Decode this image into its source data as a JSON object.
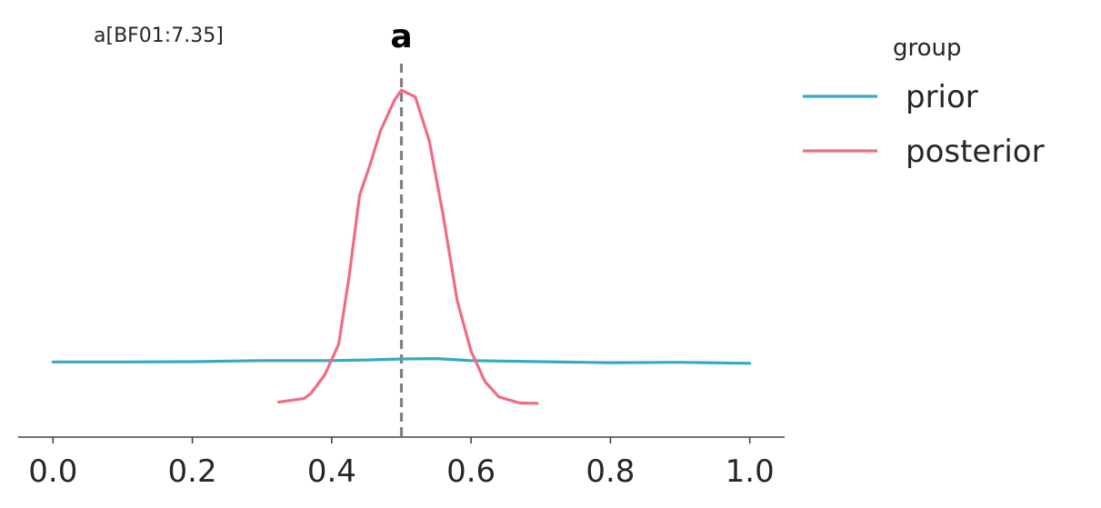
{
  "chart_data": {
    "type": "line",
    "title": "a",
    "annotation": "a[BF01:7.35]",
    "xlabel": "",
    "ylabel": "",
    "xlim": [
      -0.05,
      1.05
    ],
    "ylim": [
      0,
      1
    ],
    "x_ticks": [
      0.0,
      0.2,
      0.4,
      0.6,
      0.8,
      1.0
    ],
    "x_tick_labels": [
      "0.0",
      "0.2",
      "0.4",
      "0.6",
      "0.8",
      "1.0"
    ],
    "reference_line": {
      "x": 0.5,
      "style": "dashed",
      "color": "#808080"
    },
    "grid": false,
    "legend": {
      "title": "group",
      "placement": "right"
    },
    "series": [
      {
        "name": "prior",
        "color": "#36a9c5",
        "x": [
          0.0,
          0.1,
          0.2,
          0.3,
          0.4,
          0.45,
          0.5,
          0.55,
          0.6,
          0.7,
          0.8,
          0.9,
          1.0
        ],
        "y": [
          0.168,
          0.168,
          0.169,
          0.172,
          0.172,
          0.174,
          0.177,
          0.178,
          0.172,
          0.169,
          0.166,
          0.167,
          0.164
        ]
      },
      {
        "name": "posterior",
        "color": "#f06c82",
        "x": [
          0.324,
          0.36,
          0.37,
          0.39,
          0.41,
          0.425,
          0.44,
          0.455,
          0.47,
          0.49,
          0.5,
          0.52,
          0.54,
          0.56,
          0.58,
          0.6,
          0.62,
          0.64,
          0.67,
          0.695
        ],
        "y": [
          0.05,
          0.06,
          0.075,
          0.13,
          0.22,
          0.42,
          0.66,
          0.75,
          0.85,
          0.94,
          0.97,
          0.95,
          0.82,
          0.6,
          0.35,
          0.2,
          0.11,
          0.065,
          0.047,
          0.046
        ]
      }
    ]
  }
}
